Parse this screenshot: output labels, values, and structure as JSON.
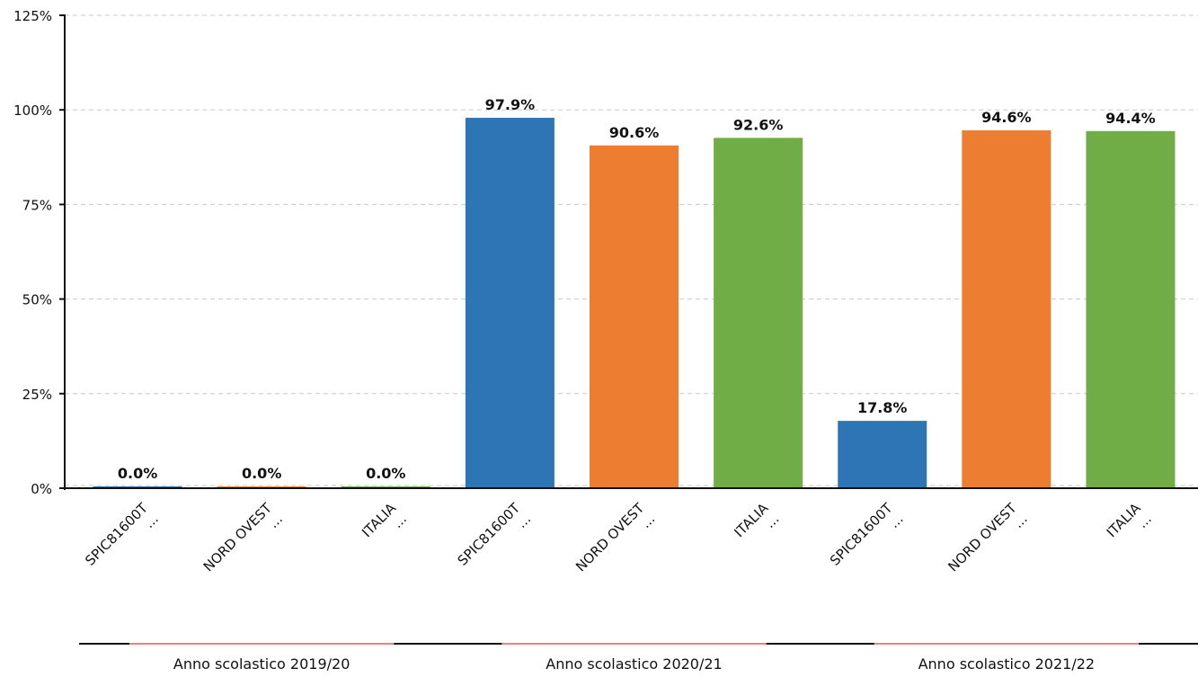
{
  "chart_data": {
    "type": "bar",
    "yticks": [
      "0%",
      "25%",
      "50%",
      "75%",
      "100%",
      "125%"
    ],
    "ylim": [
      0,
      125
    ],
    "grid": true,
    "groups": [
      {
        "label": "Anno scolastico 2019/20",
        "bars": [
          {
            "name": "SPIC81600T",
            "sub": "...",
            "value": 0.0,
            "label": "0.0%",
            "color": "#2e75b6"
          },
          {
            "name": "NORD OVEST",
            "sub": "...",
            "value": 0.0,
            "label": "0.0%",
            "color": "#ed7d31"
          },
          {
            "name": "ITALIA",
            "sub": "...",
            "value": 0.0,
            "label": "0.0%",
            "color": "#70ad47"
          }
        ]
      },
      {
        "label": "Anno scolastico 2020/21",
        "bars": [
          {
            "name": "SPIC81600T",
            "sub": "...",
            "value": 97.9,
            "label": "97.9%",
            "color": "#2e75b6"
          },
          {
            "name": "NORD OVEST",
            "sub": "...",
            "value": 90.6,
            "label": "90.6%",
            "color": "#ed7d31"
          },
          {
            "name": "ITALIA",
            "sub": "...",
            "value": 92.6,
            "label": "92.6%",
            "color": "#70ad47"
          }
        ]
      },
      {
        "label": "Anno scolastico 2021/22",
        "bars": [
          {
            "name": "SPIC81600T",
            "sub": "...",
            "value": 17.8,
            "label": "17.8%",
            "color": "#2e75b6"
          },
          {
            "name": "NORD OVEST",
            "sub": "...",
            "value": 94.6,
            "label": "94.6%",
            "color": "#ed7d31"
          },
          {
            "name": "ITALIA",
            "sub": "...",
            "value": 94.4,
            "label": "94.4%",
            "color": "#70ad47"
          }
        ]
      }
    ]
  }
}
